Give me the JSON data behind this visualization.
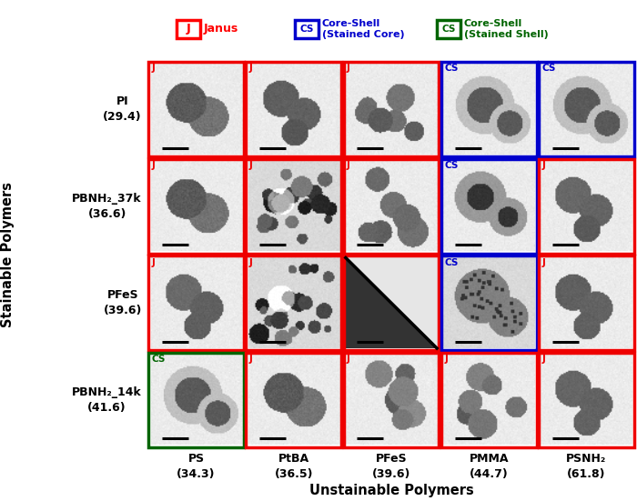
{
  "legend": {
    "J_color": "#FF0000",
    "CS_blue_color": "#0000CC",
    "CS_green_color": "#006400",
    "J_label": "Janus",
    "CS_blue_label": "Core-Shell\n(Stained Core)",
    "CS_green_label": "Core-Shell\n(Stained Shell)"
  },
  "row_labels": [
    "PI\n(29.4)",
    "PBNH₂_37k\n(36.6)",
    "PFeS\n(39.6)",
    "PBNH₂_14k\n(41.6)"
  ],
  "col_labels": [
    "PS\n(34.3)",
    "PtBA\n(36.5)",
    "PFeS\n(39.6)",
    "PMMA\n(44.7)",
    "PSNH₂\n(61.8)"
  ],
  "xlabel": "Unstainable Polymers",
  "ylabel": "Stainable Polymers",
  "grid_border_colors": [
    [
      "red",
      "red",
      "red",
      "blue",
      "blue"
    ],
    [
      "red",
      "red",
      "red",
      "blue",
      "red"
    ],
    [
      "red",
      "red",
      "red",
      "blue",
      "red"
    ],
    [
      "green",
      "red",
      "red",
      "red",
      "red"
    ]
  ],
  "grid_labels": [
    [
      "J",
      "J",
      "J",
      "CS",
      "CS"
    ],
    [
      "J",
      "J",
      "J",
      "CS",
      "J"
    ],
    [
      "J",
      "J",
      "",
      "CS",
      "J"
    ],
    [
      "CS",
      "J",
      "J",
      "J",
      "J"
    ]
  ],
  "grid_label_colors": [
    [
      "red",
      "red",
      "red",
      "blue",
      "blue"
    ],
    [
      "red",
      "red",
      "red",
      "blue",
      "red"
    ],
    [
      "red",
      "red",
      "red",
      "blue",
      "red"
    ],
    [
      "green",
      "red",
      "red",
      "red",
      "red"
    ]
  ],
  "diagonal_cell": [
    2,
    2
  ],
  "bg_color": "#FFFFFF",
  "grid_lw": 2.5,
  "n_rows": 4,
  "n_cols": 5
}
